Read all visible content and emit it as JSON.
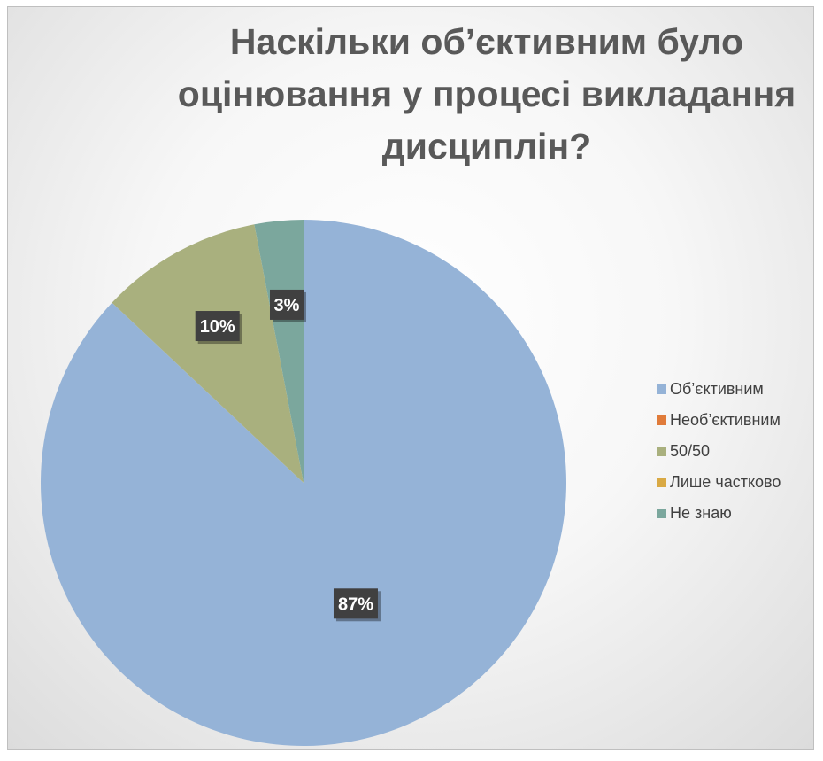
{
  "chart_data": {
    "type": "pie",
    "title": "Наскільки об’єктивним було оцінювання у процесі викладання дисциплін?",
    "categories": [
      "Об’єктивним",
      "Необ’єктивним",
      "50/50",
      "Лише частково",
      "Не знаю"
    ],
    "values": [
      87,
      0,
      10,
      0,
      3
    ],
    "data_labels": [
      "87%",
      "",
      "10%",
      "",
      "3%"
    ],
    "colors": [
      "#95B3D7",
      "#E07B3A",
      "#A9B07E",
      "#D9A944",
      "#7BA79D"
    ],
    "legend_position": "right"
  }
}
